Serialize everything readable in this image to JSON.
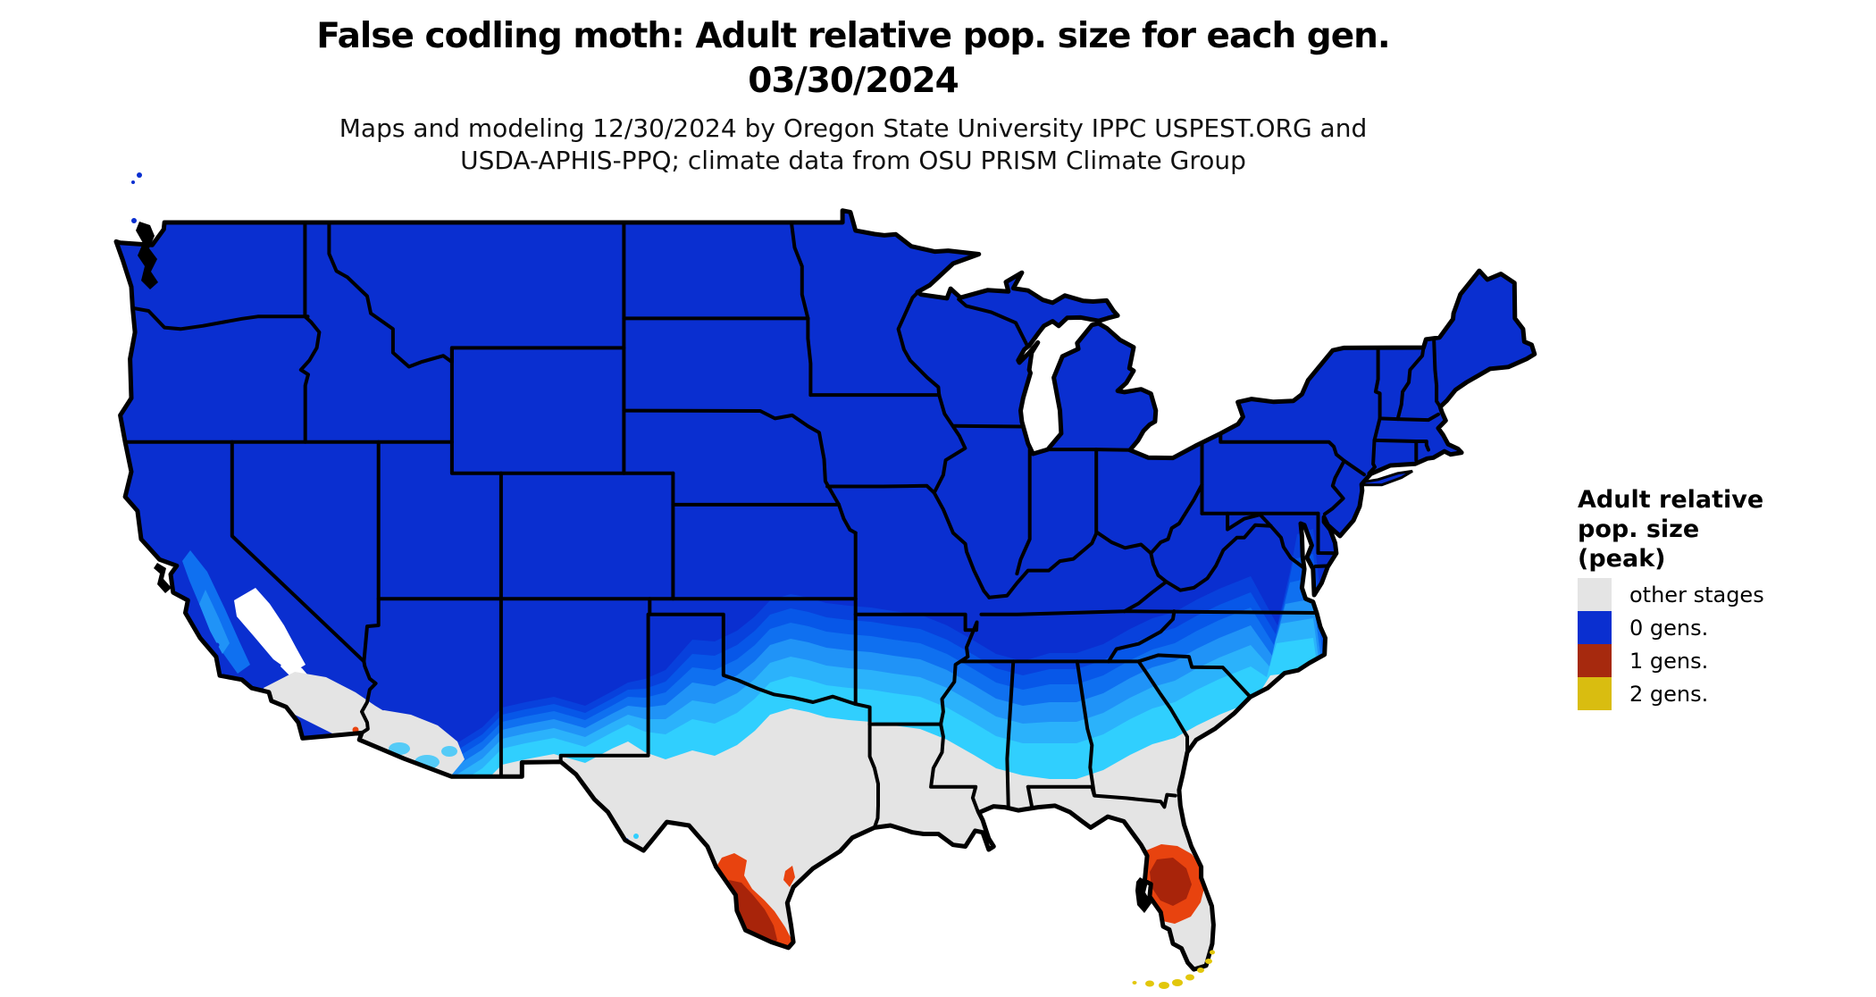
{
  "header": {
    "title_line1": "False codling moth: Adult relative pop. size for each gen.",
    "title_line2": "03/30/2024",
    "subtitle_line1": "Maps and modeling 12/30/2024 by Oregon State University IPPC USPEST.ORG and",
    "subtitle_line2": "USDA-APHIS-PPQ; climate data from OSU PRISM Climate Group"
  },
  "legend": {
    "title_lines": [
      "Adult relative",
      "pop. size",
      "(peak)"
    ],
    "items": [
      {
        "label": "other stages",
        "color": "#E4E4E4"
      },
      {
        "label": "0 gens.",
        "color": "#0A2FD0"
      },
      {
        "label": "1 gens.",
        "color": "#A6290E"
      },
      {
        "label": "2 gens.",
        "color": "#D9BD10"
      }
    ]
  },
  "map": {
    "region": "Continental United States with state borders",
    "date_shown": "03/30/2024",
    "colors": {
      "background": "#FFFFFF",
      "border": "#000000",
      "base_blue": "#0A2FD0",
      "grad_blues": [
        "#0841DC",
        "#0757E8",
        "#0F70F0",
        "#2093F7",
        "#2BB2FB",
        "#30CFFE"
      ],
      "other_stages_gray": "#E4E4E4",
      "one_gen_orange": "#E8430F",
      "one_gen_dark": "#A8240A",
      "two_gen_yellow": "#E2C70C",
      "no_data_white": "#FFFFFF",
      "light_cyan_patch": "#55CBF7"
    }
  },
  "chart_data": {
    "type": "map",
    "title": "False codling moth: Adult relative pop. size for each gen. 03/30/2024",
    "legend_title": "Adult relative pop. size (peak)",
    "legend_position": "right",
    "categories": [
      {
        "label": "other stages",
        "color": "#E4E4E4",
        "regions": "Gulf Coast south of ~31N: south-central Texas, coastal Louisiana/Mississippi/Alabama, most of Florida, plus Sonoran and Mojave desert areas of Arizona, New Mexico and southern California"
      },
      {
        "label": "0 gens.",
        "color": "#0A2FD0",
        "regions": "Nearly all of the continental US; solid dark blue north of ~35N, grading through lighter blues to cyan approaching the Gulf Coast band and up the Carolina coast"
      },
      {
        "label": "1 gens.",
        "color": "#A6290E",
        "regions": "Lower Rio Grande Valley of south Texas and a central Florida blob (Tampa to the east coast), orange fringe with dark red core"
      },
      {
        "label": "2 gens.",
        "color": "#D9BD10",
        "regions": "Florida Keys (yellow island chain at the southern tip of Florida)"
      }
    ]
  }
}
